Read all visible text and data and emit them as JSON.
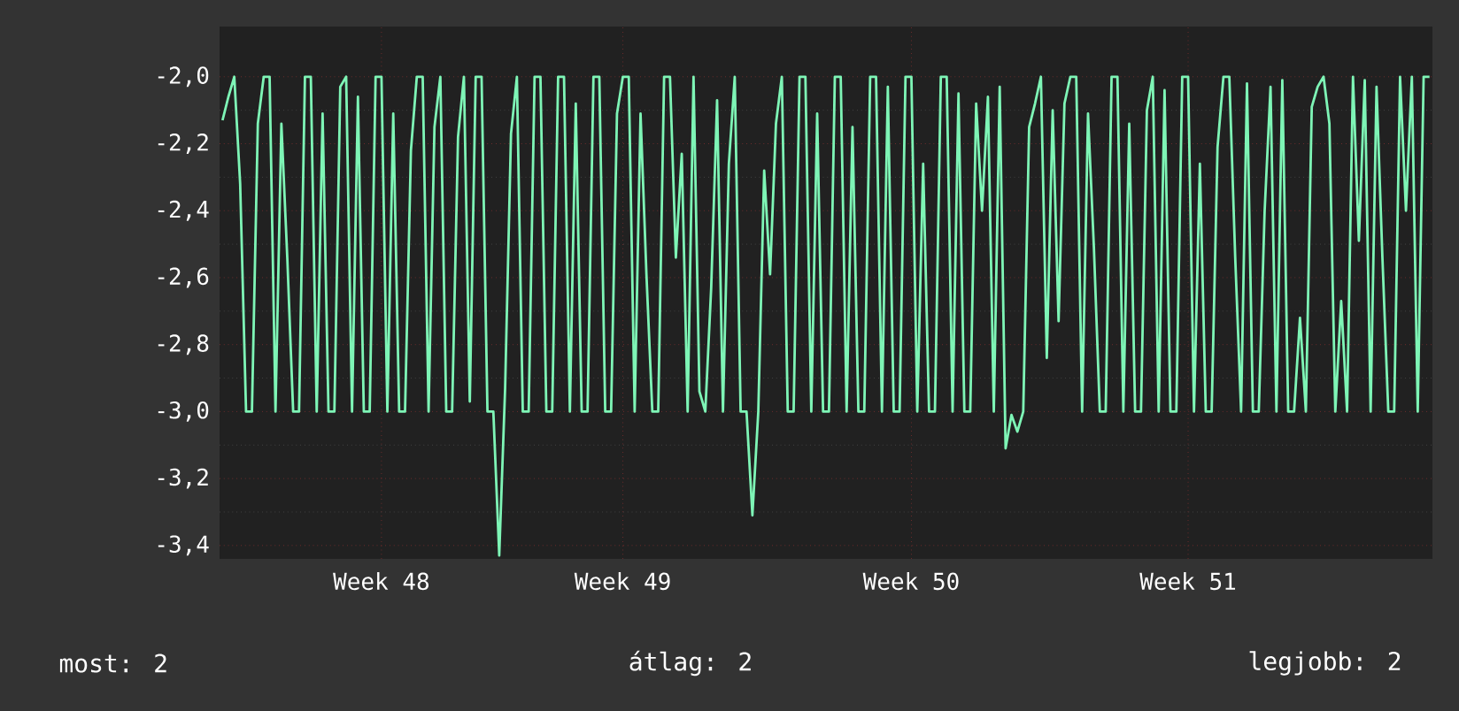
{
  "chart_data": {
    "type": "line",
    "color": "#7ef5b6",
    "grid": true,
    "categories": [
      null,
      null,
      null,
      null,
      null,
      null,
      null,
      null,
      null,
      null,
      null,
      null,
      null,
      null,
      null,
      null,
      null,
      null,
      null,
      null,
      null,
      null,
      null,
      null,
      null,
      null,
      null,
      "Week 48",
      null,
      null,
      null,
      null,
      null,
      null,
      null,
      null,
      null,
      null,
      null,
      null,
      null,
      null,
      null,
      null,
      null,
      null,
      null,
      null,
      null,
      null,
      null,
      null,
      null,
      null,
      null,
      null,
      null,
      null,
      null,
      null,
      null,
      null,
      null,
      null,
      null,
      null,
      null,
      null,
      "Week 49",
      null,
      null,
      null,
      null,
      null,
      null,
      null,
      null,
      null,
      null,
      null,
      null,
      null,
      null,
      null,
      null,
      null,
      null,
      null,
      null,
      null,
      null,
      null,
      null,
      null,
      null,
      null,
      null,
      null,
      null,
      null,
      null,
      null,
      null,
      null,
      null,
      null,
      null,
      null,
      null,
      null,
      null,
      null,
      null,
      null,
      null,
      null,
      null,
      "Week 50",
      null,
      null,
      null,
      null,
      null,
      null,
      null,
      null,
      null,
      null,
      null,
      null,
      null,
      null,
      null,
      null,
      null,
      null,
      null,
      null,
      null,
      null,
      null,
      null,
      null,
      null,
      null,
      null,
      null,
      null,
      null,
      null,
      null,
      null,
      null,
      null,
      null,
      null,
      null,
      null,
      null,
      null,
      null,
      null,
      null,
      null,
      "Week 51",
      null,
      null,
      null,
      null,
      null,
      null,
      null,
      null,
      null,
      null,
      null,
      null,
      null,
      null,
      null,
      null,
      null,
      null,
      null,
      null,
      null,
      null,
      null,
      null,
      null,
      null,
      null,
      null,
      null,
      null,
      null,
      null,
      null,
      null,
      null,
      null,
      null,
      null,
      null,
      null,
      null
    ],
    "ylim": [
      -3.44,
      -1.85
    ],
    "yticks": [
      {
        "value": -3.4,
        "label": "-3,4"
      },
      {
        "value": -3.2,
        "label": "-3,2"
      },
      {
        "value": -3.0,
        "label": "-3,0"
      },
      {
        "value": -2.8,
        "label": "-2,8"
      },
      {
        "value": -2.6,
        "label": "-2,6"
      },
      {
        "value": -2.4,
        "label": "-2,4"
      },
      {
        "value": -2.2,
        "label": "-2,2"
      },
      {
        "value": -2.0,
        "label": "-2,0"
      }
    ],
    "values": [
      -2.13,
      -2.06,
      -2.0,
      -2.32,
      -3.0,
      -3.0,
      -2.14,
      -2.0,
      -2.0,
      -3.0,
      -2.14,
      -2.54,
      -3.0,
      -3.0,
      -2.0,
      -2.0,
      -3.0,
      -2.11,
      -3.0,
      -3.0,
      -2.03,
      -2.0,
      -3.0,
      -2.06,
      -3.0,
      -3.0,
      -2.0,
      -2.0,
      -3.0,
      -2.11,
      -3.0,
      -3.0,
      -2.22,
      -2.0,
      -2.0,
      -3.0,
      -2.15,
      -2.0,
      -3.0,
      -3.0,
      -2.18,
      -2.0,
      -2.97,
      -2.0,
      -2.0,
      -3.0,
      -3.0,
      -3.43,
      -2.93,
      -2.17,
      -2.0,
      -3.0,
      -3.0,
      -2.0,
      -2.0,
      -3.0,
      -3.0,
      -2.0,
      -2.0,
      -3.0,
      -2.08,
      -3.0,
      -3.0,
      -2.0,
      -2.0,
      -3.0,
      -3.0,
      -2.11,
      -2.0,
      -2.0,
      -3.0,
      -2.11,
      -2.59,
      -3.0,
      -3.0,
      -2.0,
      -2.0,
      -2.54,
      -2.23,
      -3.0,
      -2.0,
      -2.94,
      -3.0,
      -2.63,
      -2.07,
      -3.0,
      -2.26,
      -2.0,
      -3.0,
      -3.0,
      -3.31,
      -3.0,
      -2.28,
      -2.59,
      -2.14,
      -2.0,
      -3.0,
      -3.0,
      -2.0,
      -2.0,
      -3.0,
      -2.11,
      -3.0,
      -3.0,
      -2.0,
      -2.0,
      -3.0,
      -2.15,
      -3.0,
      -3.0,
      -2.0,
      -2.0,
      -3.0,
      -2.03,
      -3.0,
      -3.0,
      -2.0,
      -2.0,
      -3.0,
      -2.26,
      -3.0,
      -3.0,
      -2.0,
      -2.0,
      -3.0,
      -2.05,
      -3.0,
      -3.0,
      -2.08,
      -2.4,
      -2.06,
      -3.0,
      -2.03,
      -3.11,
      -3.01,
      -3.06,
      -3.0,
      -2.15,
      -2.08,
      -2.0,
      -2.84,
      -2.1,
      -2.73,
      -2.08,
      -2.0,
      -2.0,
      -3.0,
      -2.11,
      -2.51,
      -3.0,
      -3.0,
      -2.0,
      -2.0,
      -3.0,
      -2.14,
      -3.0,
      -3.0,
      -2.1,
      -2.0,
      -3.0,
      -2.04,
      -3.0,
      -3.0,
      -2.0,
      -2.0,
      -3.0,
      -2.26,
      -3.0,
      -3.0,
      -2.21,
      -2.0,
      -2.0,
      -2.54,
      -3.0,
      -2.02,
      -3.0,
      -3.0,
      -2.4,
      -2.03,
      -3.0,
      -2.01,
      -3.0,
      -3.0,
      -2.72,
      -3.0,
      -2.09,
      -2.03,
      -2.0,
      -2.14,
      -3.0,
      -2.67,
      -3.0,
      -2.0,
      -2.49,
      -2.01,
      -3.0,
      -2.03,
      -2.54,
      -3.0,
      -3.0,
      -2.0,
      -2.4,
      -2.0,
      -3.0,
      -2.0,
      -2.0
    ],
    "annotations": [
      "most: 2",
      "átlag: 2",
      "legjobb: 2"
    ]
  }
}
